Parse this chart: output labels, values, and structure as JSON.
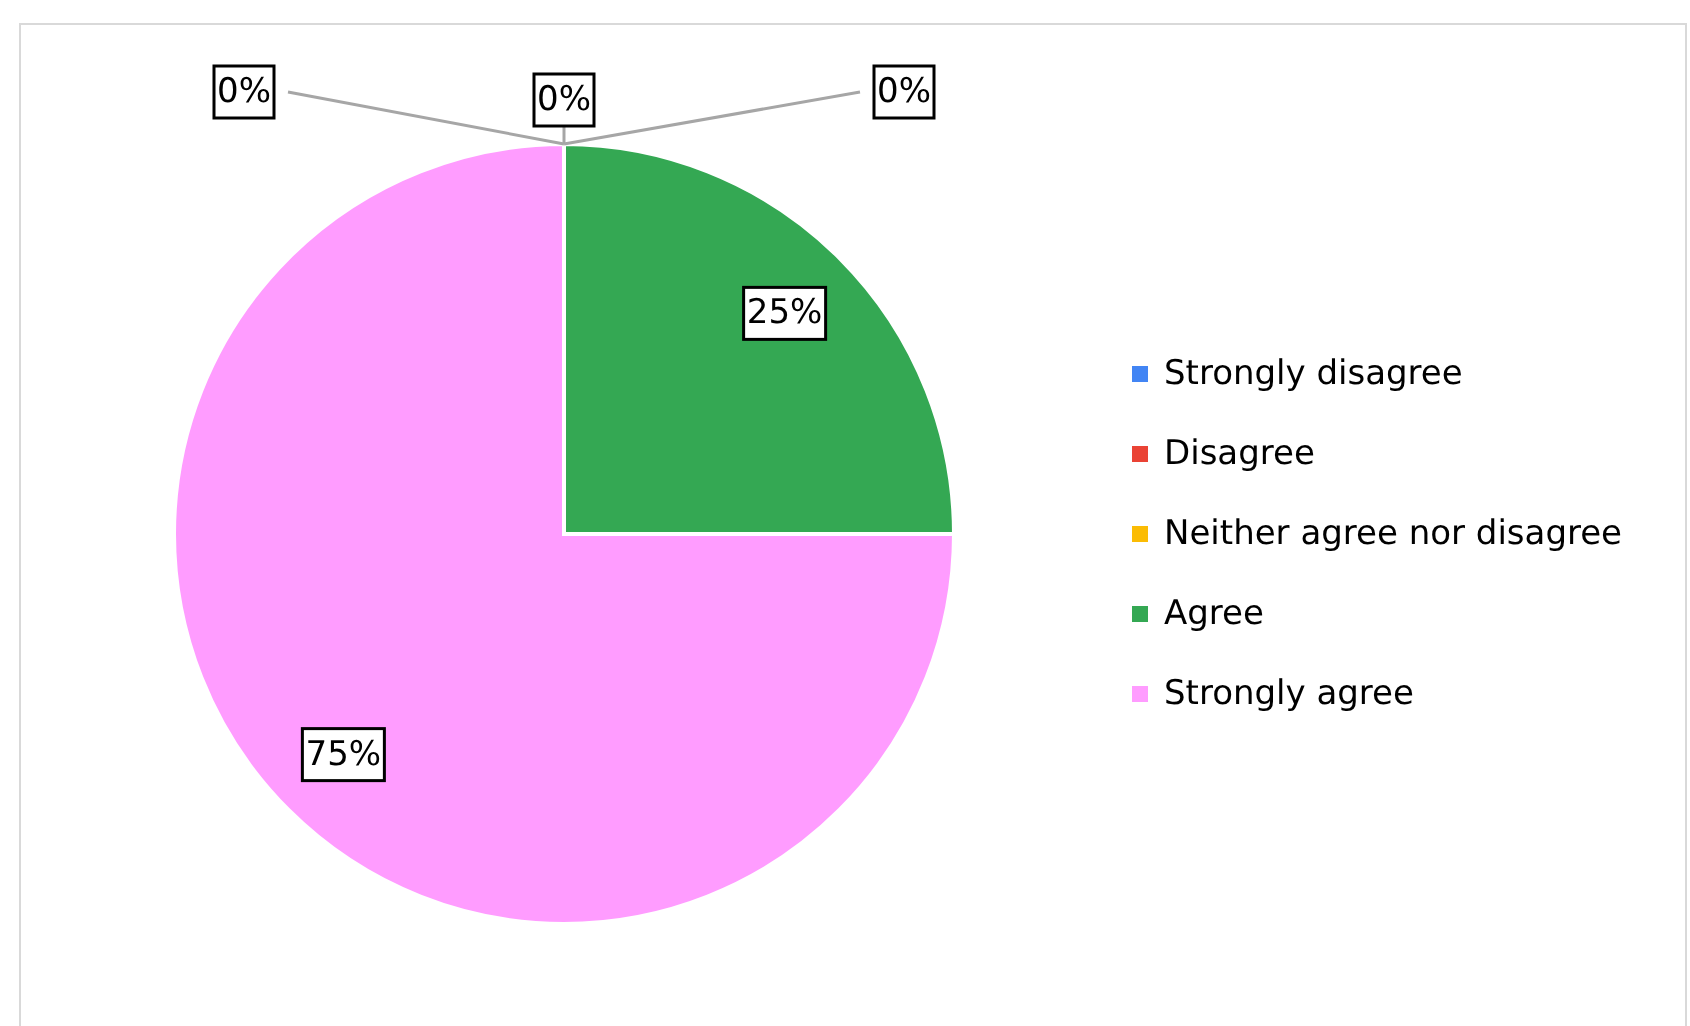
{
  "chart_data": {
    "type": "pie",
    "categories": [
      "Strongly disagree",
      "Disagree",
      "Neither agree nor disagree",
      "Agree",
      "Strongly agree"
    ],
    "values": [
      0,
      0,
      0,
      25,
      75
    ],
    "colors": [
      "#4285f4",
      "#ea4335",
      "#fbbc04",
      "#34a853",
      "#ff9cff"
    ],
    "value_labels": [
      "0%",
      "0%",
      "0%",
      "25%",
      "75%"
    ],
    "legend": "right"
  }
}
